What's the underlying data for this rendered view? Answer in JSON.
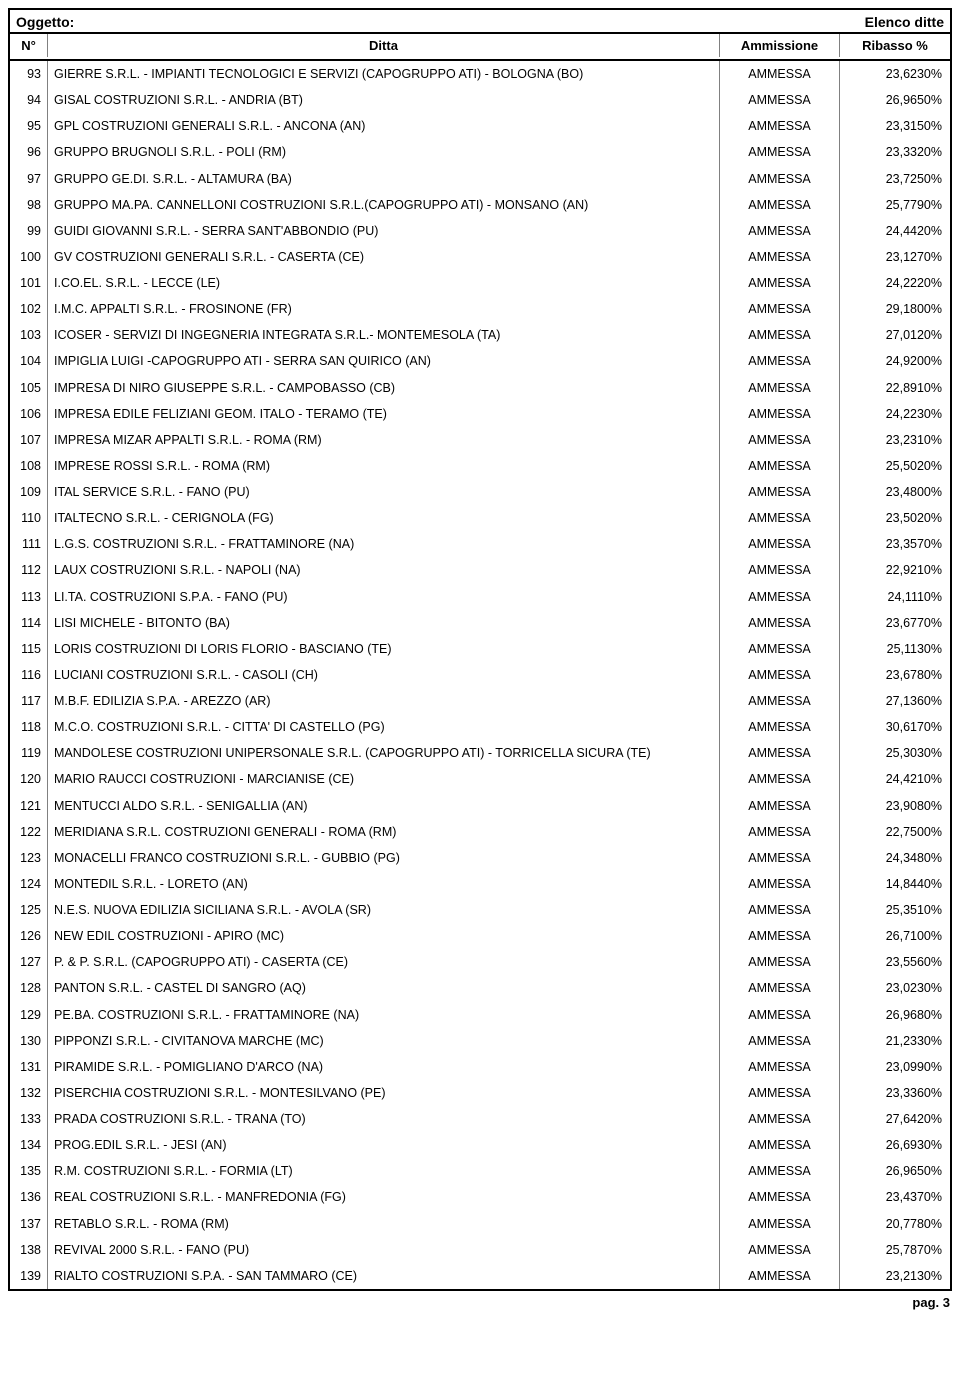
{
  "header": {
    "left": "Oggetto:",
    "right": "Elenco ditte"
  },
  "columns": {
    "n": "N°",
    "ditta": "Ditta",
    "amm": "Ammissione",
    "rib": "Ribasso %"
  },
  "rows": [
    {
      "n": "93",
      "d": "GIERRE S.R.L. - IMPIANTI TECNOLOGICI E SERVIZI (CAPOGRUPPO ATI) - BOLOGNA (BO)",
      "a": "AMMESSA",
      "r": "23,6230%"
    },
    {
      "n": "94",
      "d": "GISAL COSTRUZIONI S.R.L. - ANDRIA (BT)",
      "a": "AMMESSA",
      "r": "26,9650%"
    },
    {
      "n": "95",
      "d": "GPL COSTRUZIONI GENERALI S.R.L. - ANCONA (AN)",
      "a": "AMMESSA",
      "r": "23,3150%"
    },
    {
      "n": "96",
      "d": "GRUPPO BRUGNOLI S.R.L. - POLI (RM)",
      "a": "AMMESSA",
      "r": "23,3320%"
    },
    {
      "n": "97",
      "d": "GRUPPO GE.DI. S.R.L. - ALTAMURA (BA)",
      "a": "AMMESSA",
      "r": "23,7250%"
    },
    {
      "n": "98",
      "d": "GRUPPO MA.PA. CANNELLONI COSTRUZIONI S.R.L.(CAPOGRUPPO ATI) - MONSANO (AN)",
      "a": "AMMESSA",
      "r": "25,7790%"
    },
    {
      "n": "99",
      "d": "GUIDI GIOVANNI S.R.L. - SERRA SANT'ABBONDIO (PU)",
      "a": "AMMESSA",
      "r": "24,4420%"
    },
    {
      "n": "100",
      "d": "GV COSTRUZIONI GENERALI S.R.L. - CASERTA (CE)",
      "a": "AMMESSA",
      "r": "23,1270%"
    },
    {
      "n": "101",
      "d": "I.CO.EL. S.R.L. - LECCE (LE)",
      "a": "AMMESSA",
      "r": "24,2220%"
    },
    {
      "n": "102",
      "d": "I.M.C. APPALTI S.R.L. - FROSINONE (FR)",
      "a": "AMMESSA",
      "r": "29,1800%"
    },
    {
      "n": "103",
      "d": "ICOSER - SERVIZI DI INGEGNERIA INTEGRATA S.R.L.- MONTEMESOLA (TA)",
      "a": "AMMESSA",
      "r": "27,0120%"
    },
    {
      "n": "104",
      "d": "IMPIGLIA LUIGI -CAPOGRUPPO ATI - SERRA SAN QUIRICO (AN)",
      "a": "AMMESSA",
      "r": "24,9200%"
    },
    {
      "n": "105",
      "d": "IMPRESA DI NIRO GIUSEPPE S.R.L. - CAMPOBASSO (CB)",
      "a": "AMMESSA",
      "r": "22,8910%"
    },
    {
      "n": "106",
      "d": "IMPRESA EDILE FELIZIANI GEOM. ITALO - TERAMO (TE)",
      "a": "AMMESSA",
      "r": "24,2230%"
    },
    {
      "n": "107",
      "d": "IMPRESA MIZAR APPALTI S.R.L. - ROMA (RM)",
      "a": "AMMESSA",
      "r": "23,2310%"
    },
    {
      "n": "108",
      "d": "IMPRESE ROSSI S.R.L. - ROMA (RM)",
      "a": "AMMESSA",
      "r": "25,5020%"
    },
    {
      "n": "109",
      "d": "ITAL SERVICE S.R.L. - FANO (PU)",
      "a": "AMMESSA",
      "r": "23,4800%"
    },
    {
      "n": "110",
      "d": "ITALTECNO S.R.L. - CERIGNOLA (FG)",
      "a": "AMMESSA",
      "r": "23,5020%"
    },
    {
      "n": "111",
      "d": "L.G.S. COSTRUZIONI S.R.L. - FRATTAMINORE (NA)",
      "a": "AMMESSA",
      "r": "23,3570%"
    },
    {
      "n": "112",
      "d": "LAUX COSTRUZIONI S.R.L. - NAPOLI (NA)",
      "a": "AMMESSA",
      "r": "22,9210%"
    },
    {
      "n": "113",
      "d": "LI.TA. COSTRUZIONI S.P.A. - FANO (PU)",
      "a": "AMMESSA",
      "r": "24,1110%"
    },
    {
      "n": "114",
      "d": "LISI MICHELE - BITONTO (BA)",
      "a": "AMMESSA",
      "r": "23,6770%"
    },
    {
      "n": "115",
      "d": "LORIS COSTRUZIONI DI LORIS FLORIO - BASCIANO (TE)",
      "a": "AMMESSA",
      "r": "25,1130%"
    },
    {
      "n": "116",
      "d": "LUCIANI COSTRUZIONI S.R.L. - CASOLI (CH)",
      "a": "AMMESSA",
      "r": "23,6780%"
    },
    {
      "n": "117",
      "d": "M.B.F. EDILIZIA S.P.A. - AREZZO (AR)",
      "a": "AMMESSA",
      "r": "27,1360%"
    },
    {
      "n": "118",
      "d": "M.C.O. COSTRUZIONI S.R.L. - CITTA' DI CASTELLO (PG)",
      "a": "AMMESSA",
      "r": "30,6170%"
    },
    {
      "n": "119",
      "d": "MANDOLESE COSTRUZIONI UNIPERSONALE S.R.L. (CAPOGRUPPO ATI) - TORRICELLA SICURA (TE)",
      "a": "AMMESSA",
      "r": "25,3030%"
    },
    {
      "n": "120",
      "d": "MARIO RAUCCI COSTRUZIONI - MARCIANISE (CE)",
      "a": "AMMESSA",
      "r": "24,4210%"
    },
    {
      "n": "121",
      "d": "MENTUCCI ALDO S.R.L. - SENIGALLIA (AN)",
      "a": "AMMESSA",
      "r": "23,9080%"
    },
    {
      "n": "122",
      "d": "MERIDIANA S.R.L. COSTRUZIONI GENERALI - ROMA (RM)",
      "a": "AMMESSA",
      "r": "22,7500%"
    },
    {
      "n": "123",
      "d": "MONACELLI FRANCO COSTRUZIONI S.R.L. - GUBBIO (PG)",
      "a": "AMMESSA",
      "r": "24,3480%"
    },
    {
      "n": "124",
      "d": "MONTEDIL S.R.L. - LORETO (AN)",
      "a": "AMMESSA",
      "r": "14,8440%"
    },
    {
      "n": "125",
      "d": "N.E.S. NUOVA EDILIZIA SICILIANA S.R.L. - AVOLA (SR)",
      "a": "AMMESSA",
      "r": "25,3510%"
    },
    {
      "n": "126",
      "d": "NEW EDIL COSTRUZIONI - APIRO (MC)",
      "a": "AMMESSA",
      "r": "26,7100%"
    },
    {
      "n": "127",
      "d": "P. & P. S.R.L. (CAPOGRUPPO ATI) - CASERTA (CE)",
      "a": "AMMESSA",
      "r": "23,5560%"
    },
    {
      "n": "128",
      "d": "PANTON S.R.L. - CASTEL DI SANGRO (AQ)",
      "a": "AMMESSA",
      "r": "23,0230%"
    },
    {
      "n": "129",
      "d": "PE.BA. COSTRUZIONI S.R.L. - FRATTAMINORE (NA)",
      "a": "AMMESSA",
      "r": "26,9680%"
    },
    {
      "n": "130",
      "d": "PIPPONZI S.R.L. - CIVITANOVA MARCHE (MC)",
      "a": "AMMESSA",
      "r": "21,2330%"
    },
    {
      "n": "131",
      "d": "PIRAMIDE S.R.L. - POMIGLIANO D'ARCO (NA)",
      "a": "AMMESSA",
      "r": "23,0990%"
    },
    {
      "n": "132",
      "d": "PISERCHIA COSTRUZIONI S.R.L. - MONTESILVANO (PE)",
      "a": "AMMESSA",
      "r": "23,3360%"
    },
    {
      "n": "133",
      "d": "PRADA COSTRUZIONI S.R.L. - TRANA (TO)",
      "a": "AMMESSA",
      "r": "27,6420%"
    },
    {
      "n": "134",
      "d": "PROG.EDIL S.R.L. - JESI (AN)",
      "a": "AMMESSA",
      "r": "26,6930%"
    },
    {
      "n": "135",
      "d": "R.M. COSTRUZIONI S.R.L. - FORMIA (LT)",
      "a": "AMMESSA",
      "r": "26,9650%"
    },
    {
      "n": "136",
      "d": "REAL COSTRUZIONI S.R.L. - MANFREDONIA (FG)",
      "a": "AMMESSA",
      "r": "23,4370%"
    },
    {
      "n": "137",
      "d": "RETABLO S.R.L. - ROMA (RM)",
      "a": "AMMESSA",
      "r": "20,7780%"
    },
    {
      "n": "138",
      "d": "REVIVAL 2000 S.R.L. - FANO (PU)",
      "a": "AMMESSA",
      "r": "25,7870%"
    },
    {
      "n": "139",
      "d": "RIALTO COSTRUZIONI S.P.A. - SAN TAMMARO (CE)",
      "a": "AMMESSA",
      "r": "23,2130%"
    }
  ],
  "footer": "pag. 3"
}
